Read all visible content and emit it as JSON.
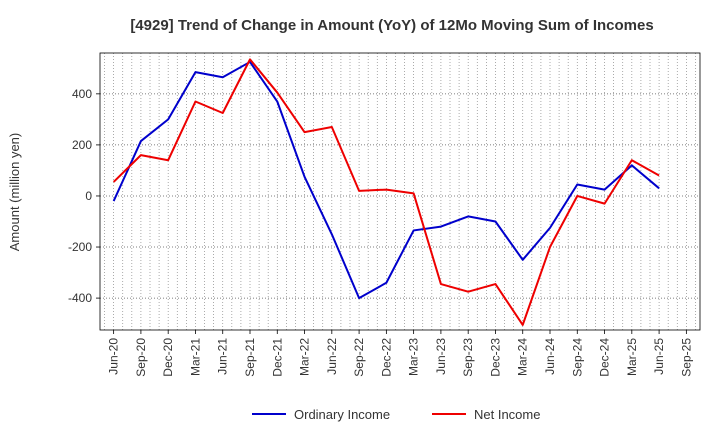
{
  "chart_data": {
    "type": "line",
    "title": "[4929]  Trend of Change in Amount (YoY) of 12Mo Moving Sum of Incomes",
    "ylabel": "Amount (million yen)",
    "xlabel": "",
    "categories": [
      "Jun-20",
      "Sep-20",
      "Dec-20",
      "Mar-21",
      "Jun-21",
      "Sep-21",
      "Dec-21",
      "Mar-22",
      "Jun-22",
      "Sep-22",
      "Dec-22",
      "Mar-23",
      "Jun-23",
      "Sep-23",
      "Dec-23",
      "Mar-24",
      "Jun-24",
      "Sep-24",
      "Dec-24",
      "Mar-25",
      "Jun-25",
      "Sep-25"
    ],
    "ylim": [
      -525,
      560
    ],
    "yticks": [
      -400,
      -200,
      0,
      200,
      400
    ],
    "grid": true,
    "legend_position": "bottom",
    "series": [
      {
        "name": "Ordinary Income",
        "color": "#0000cc",
        "values": [
          -20,
          215,
          300,
          485,
          465,
          525,
          370,
          75,
          -150,
          -400,
          -340,
          -135,
          -120,
          -80,
          -100,
          -250,
          -125,
          45,
          25,
          120,
          30,
          null
        ]
      },
      {
        "name": "Net Income",
        "color": "#ee0000",
        "values": [
          55,
          160,
          140,
          370,
          325,
          535,
          405,
          250,
          270,
          20,
          25,
          10,
          -345,
          -375,
          -345,
          -505,
          -200,
          0,
          -30,
          140,
          80,
          null
        ]
      }
    ]
  }
}
